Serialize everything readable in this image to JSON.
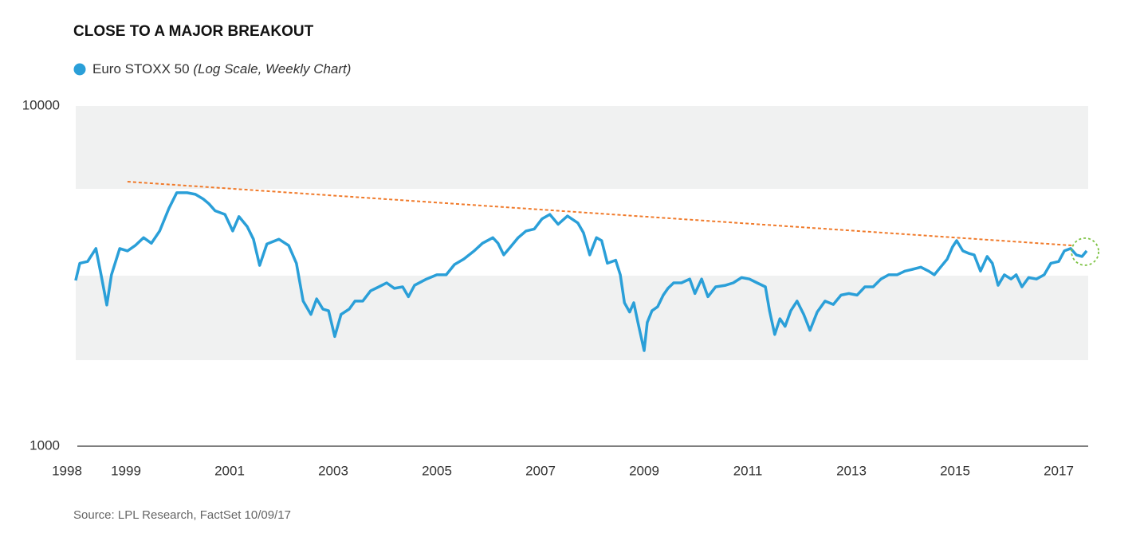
{
  "chart_data": {
    "type": "line",
    "title": "CLOSE TO A MAJOR BREAKOUT",
    "subtitle": "(Log Scale, Weekly Chart)",
    "source": "Source: LPL Research, FactSet  10/09/17",
    "log_scale": true,
    "grid": false,
    "xlim": [
      1998,
      2017.6
    ],
    "xticks": [
      1998,
      1999,
      2001,
      2003,
      2005,
      2007,
      2009,
      2011,
      2013,
      2015,
      2017
    ],
    "ylim": [
      1000,
      10000
    ],
    "yticks": [
      1000,
      10000
    ],
    "x": [
      1998.03,
      1998.11,
      1998.26,
      1998.42,
      1998.52,
      1998.63,
      1998.72,
      1998.88,
      1999.03,
      1999.18,
      1999.34,
      1999.49,
      1999.65,
      1999.83,
      1999.98,
      2000.18,
      2000.34,
      2000.49,
      2000.6,
      2000.72,
      2000.91,
      2001.06,
      2001.18,
      2001.34,
      2001.46,
      2001.58,
      2001.72,
      2001.95,
      2002.14,
      2002.29,
      2002.42,
      2002.57,
      2002.68,
      2002.8,
      2002.91,
      2003.03,
      2003.15,
      2003.31,
      2003.42,
      2003.57,
      2003.72,
      2003.88,
      2004.03,
      2004.18,
      2004.34,
      2004.45,
      2004.57,
      2004.8,
      2005.0,
      2005.18,
      2005.34,
      2005.52,
      2005.72,
      2005.88,
      2006.08,
      2006.18,
      2006.29,
      2006.42,
      2006.57,
      2006.72,
      2006.88,
      2007.03,
      2007.18,
      2007.34,
      2007.52,
      2007.72,
      2007.83,
      2007.95,
      2008.08,
      2008.18,
      2008.29,
      2008.45,
      2008.54,
      2008.62,
      2008.72,
      2008.8,
      2008.88,
      2009.0,
      2009.06,
      2009.15,
      2009.26,
      2009.37,
      2009.46,
      2009.57,
      2009.72,
      2009.88,
      2009.98,
      2010.11,
      2010.23,
      2010.38,
      2010.57,
      2010.72,
      2010.88,
      2011.03,
      2011.18,
      2011.34,
      2011.42,
      2011.52,
      2011.62,
      2011.72,
      2011.83,
      2011.95,
      2012.08,
      2012.2,
      2012.34,
      2012.49,
      2012.65,
      2012.8,
      2012.95,
      2013.11,
      2013.26,
      2013.42,
      2013.57,
      2013.72,
      2013.88,
      2014.03,
      2014.18,
      2014.34,
      2014.49,
      2014.6,
      2014.72,
      2014.85,
      2014.95,
      2015.03,
      2015.15,
      2015.26,
      2015.37,
      2015.49,
      2015.62,
      2015.72,
      2015.83,
      2015.95,
      2016.08,
      2016.18,
      2016.29,
      2016.42,
      2016.57,
      2016.72,
      2016.85,
      2017.0,
      2017.11,
      2017.23,
      2017.34,
      2017.45,
      2017.54
    ],
    "series": [
      {
        "name": "Euro STOXX 50",
        "color": "#2a9fd8",
        "values": [
          3070,
          3450,
          3490,
          3810,
          3190,
          2600,
          3190,
          3810,
          3750,
          3890,
          4100,
          3950,
          4290,
          5000,
          5560,
          5560,
          5500,
          5330,
          5160,
          4920,
          4800,
          4290,
          4730,
          4420,
          4060,
          3400,
          3930,
          4060,
          3890,
          3450,
          2670,
          2440,
          2710,
          2530,
          2500,
          2100,
          2440,
          2530,
          2670,
          2670,
          2860,
          2940,
          3020,
          2910,
          2940,
          2750,
          2970,
          3100,
          3190,
          3190,
          3420,
          3550,
          3750,
          3950,
          4100,
          3950,
          3650,
          3850,
          4100,
          4290,
          4350,
          4660,
          4800,
          4490,
          4750,
          4530,
          4240,
          3650,
          4100,
          4020,
          3450,
          3520,
          3190,
          2640,
          2480,
          2640,
          2310,
          1910,
          2310,
          2500,
          2570,
          2780,
          2910,
          3020,
          3020,
          3100,
          2810,
          3100,
          2750,
          2940,
          2970,
          3020,
          3130,
          3100,
          3020,
          2940,
          2500,
          2130,
          2370,
          2250,
          2500,
          2670,
          2440,
          2190,
          2480,
          2670,
          2610,
          2780,
          2810,
          2780,
          2940,
          2940,
          3100,
          3190,
          3190,
          3270,
          3310,
          3360,
          3270,
          3190,
          3360,
          3550,
          3850,
          4020,
          3750,
          3690,
          3650,
          3270,
          3610,
          3450,
          2970,
          3190,
          3100,
          3190,
          2940,
          3130,
          3100,
          3190,
          3450,
          3490,
          3750,
          3810,
          3650,
          3610,
          3750
        ]
      }
    ],
    "trend": {
      "color": "#f07a2a",
      "x": [
        1999.03,
        2017.26
      ],
      "values": [
        5990,
        3890
      ]
    }
  }
}
